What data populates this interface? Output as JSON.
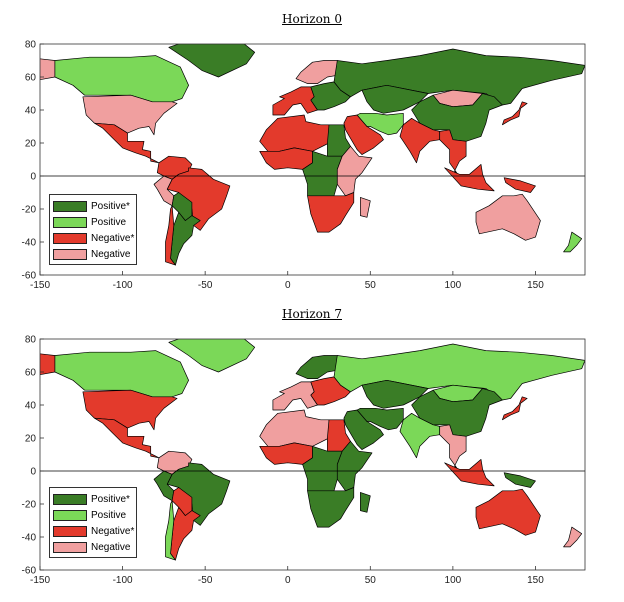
{
  "colors": {
    "positive_star": "#3a7d26",
    "positive": "#7bd858",
    "negative_star": "#e33a2c",
    "negative": "#f09f9f",
    "land_none": "#ffffff",
    "border": "#000000"
  },
  "legend": [
    {
      "label": "Positive*",
      "color_key": "positive_star"
    },
    {
      "label": "Positive",
      "color_key": "positive"
    },
    {
      "label": "Negative*",
      "color_key": "negative_star"
    },
    {
      "label": "Negative",
      "color_key": "negative"
    }
  ],
  "axes": {
    "x_ticks": [
      "-150",
      "-100",
      "-50",
      "0",
      "50",
      "100",
      "150"
    ],
    "y_ticks": [
      "80",
      "60",
      "40",
      "20",
      "0",
      "-20",
      "-40",
      "-60"
    ],
    "xlim": [
      -150,
      180
    ],
    "ylim": [
      -60,
      80
    ]
  },
  "panels": [
    {
      "title": "Horizon 0",
      "regions": [
        {
          "name": "Alaska",
          "class": "negative"
        },
        {
          "name": "Canada",
          "class": "positive"
        },
        {
          "name": "Greenland",
          "class": "positive_star"
        },
        {
          "name": "United States",
          "class": "negative"
        },
        {
          "name": "Mexico & Central America",
          "class": "negative_star"
        },
        {
          "name": "Colombia / Venezuela",
          "class": "negative_star"
        },
        {
          "name": "Brazil",
          "class": "negative_star"
        },
        {
          "name": "Peru",
          "class": "negative"
        },
        {
          "name": "Bolivia / Paraguay",
          "class": "positive_star"
        },
        {
          "name": "Argentina",
          "class": "positive_star"
        },
        {
          "name": "Chile",
          "class": "negative_star"
        },
        {
          "name": "Western Europe",
          "class": "negative_star"
        },
        {
          "name": "Scandinavia",
          "class": "negative"
        },
        {
          "name": "Eastern Europe",
          "class": "positive_star"
        },
        {
          "name": "Russia",
          "class": "positive_star"
        },
        {
          "name": "Kazakhstan & Central Asia",
          "class": "positive_star"
        },
        {
          "name": "Mongolia",
          "class": "negative"
        },
        {
          "name": "China",
          "class": "positive_star"
        },
        {
          "name": "Middle East",
          "class": "negative_star"
        },
        {
          "name": "Iran / Afghanistan",
          "class": "positive"
        },
        {
          "name": "India",
          "class": "negative_star"
        },
        {
          "name": "Southeast Asia",
          "class": "negative_star"
        },
        {
          "name": "Japan",
          "class": "negative_star"
        },
        {
          "name": "North Africa",
          "class": "negative_star"
        },
        {
          "name": "Egypt",
          "class": "positive_star"
        },
        {
          "name": "West Africa",
          "class": "negative_star"
        },
        {
          "name": "Central Africa",
          "class": "positive_star"
        },
        {
          "name": "East Africa",
          "class": "negative"
        },
        {
          "name": "Southern Africa",
          "class": "negative_star"
        },
        {
          "name": "Madagascar",
          "class": "negative"
        },
        {
          "name": "Indonesia",
          "class": "negative_star"
        },
        {
          "name": "Papua New Guinea",
          "class": "negative_star"
        },
        {
          "name": "Australia",
          "class": "negative"
        },
        {
          "name": "New Zealand",
          "class": "positive"
        }
      ]
    },
    {
      "title": "Horizon 7",
      "regions": [
        {
          "name": "Alaska",
          "class": "negative_star"
        },
        {
          "name": "Canada",
          "class": "positive"
        },
        {
          "name": "Greenland",
          "class": "positive"
        },
        {
          "name": "United States",
          "class": "negative_star"
        },
        {
          "name": "Mexico & Central America",
          "class": "negative_star"
        },
        {
          "name": "Colombia / Venezuela",
          "class": "negative"
        },
        {
          "name": "Brazil",
          "class": "positive_star"
        },
        {
          "name": "Peru",
          "class": "positive_star"
        },
        {
          "name": "Bolivia / Paraguay",
          "class": "negative_star"
        },
        {
          "name": "Argentina",
          "class": "negative_star"
        },
        {
          "name": "Chile",
          "class": "positive"
        },
        {
          "name": "Western Europe",
          "class": "negative"
        },
        {
          "name": "Scandinavia",
          "class": "positive_star"
        },
        {
          "name": "Eastern Europe",
          "class": "negative_star"
        },
        {
          "name": "Russia",
          "class": "positive"
        },
        {
          "name": "Kazakhstan & Central Asia",
          "class": "positive_star"
        },
        {
          "name": "Mongolia",
          "class": "positive"
        },
        {
          "name": "China",
          "class": "positive_star"
        },
        {
          "name": "Middle East",
          "class": "positive_star"
        },
        {
          "name": "Iran / Afghanistan",
          "class": "positive_star"
        },
        {
          "name": "India",
          "class": "positive"
        },
        {
          "name": "Southeast Asia",
          "class": "negative"
        },
        {
          "name": "Japan",
          "class": "negative_star"
        },
        {
          "name": "North Africa",
          "class": "negative"
        },
        {
          "name": "Egypt",
          "class": "negative_star"
        },
        {
          "name": "West Africa",
          "class": "negative_star"
        },
        {
          "name": "Central Africa",
          "class": "positive_star"
        },
        {
          "name": "East Africa",
          "class": "positive_star"
        },
        {
          "name": "Southern Africa",
          "class": "positive_star"
        },
        {
          "name": "Madagascar",
          "class": "positive_star"
        },
        {
          "name": "Indonesia",
          "class": "negative_star"
        },
        {
          "name": "Papua New Guinea",
          "class": "positive_star"
        },
        {
          "name": "Australia",
          "class": "negative_star"
        },
        {
          "name": "New Zealand",
          "class": "negative"
        }
      ]
    }
  ]
}
